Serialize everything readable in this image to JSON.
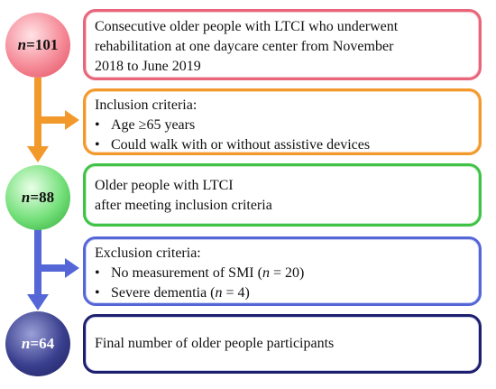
{
  "steps": [
    {
      "count_prefix": "n",
      "count_value": "=101",
      "text_lines": [
        "Consecutive older people with LTCI who underwent",
        "rehabilitation at one daycare center from November",
        "2018 to June 2019"
      ]
    },
    {
      "count_prefix": "n",
      "count_value": "=88",
      "text_lines": [
        "Older people  with LTCI",
        "after meeting inclusion criteria"
      ]
    },
    {
      "count_prefix": "n",
      "count_value": "=64",
      "text_lines": [
        "Final number of older people participants"
      ]
    }
  ],
  "inclusion": {
    "title": "Inclusion criteria:",
    "bullet": "•",
    "items": [
      "Age ≥65 years",
      "Could walk with or without assistive devices"
    ]
  },
  "exclusion": {
    "title": "Exclusion criteria:",
    "bullet": "•",
    "items": [
      {
        "text": "No measurement of SMI (",
        "n": "n",
        "rest": " = 20)"
      },
      {
        "text": "Severe dementia (",
        "n": "n",
        "rest": " = 4)"
      }
    ]
  },
  "colors": {
    "pink": "#e8657a",
    "orange": "#f2992c",
    "green": "#3fc246",
    "blue": "#5566d6",
    "navy": "#1d1f6e"
  }
}
